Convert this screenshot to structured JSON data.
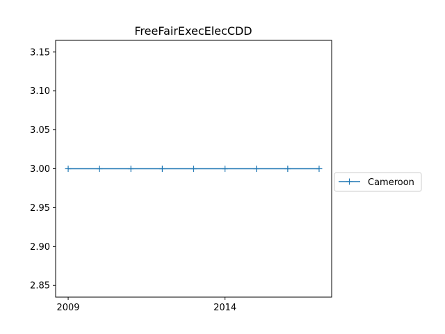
{
  "chart_data": {
    "type": "line",
    "title": "FreeFairExecElecCDD",
    "xlabel": "",
    "ylabel": "",
    "x": [
      2009,
      2010,
      2011,
      2012,
      2013,
      2014,
      2015,
      2016,
      2017
    ],
    "series": [
      {
        "name": "Cameroon",
        "values": [
          3.0,
          3.0,
          3.0,
          3.0,
          3.0,
          3.0,
          3.0,
          3.0,
          3.0
        ],
        "color": "#1f77b4",
        "marker": "+"
      }
    ],
    "xlim": [
      2008.6,
      2017.4
    ],
    "ylim": [
      2.835,
      3.165
    ],
    "x_ticks": [
      "2009",
      "2014"
    ],
    "y_ticks": [
      "2.85",
      "2.90",
      "2.95",
      "3.00",
      "3.05",
      "3.10",
      "3.15"
    ],
    "grid": false,
    "legend_position": "outside-right"
  }
}
